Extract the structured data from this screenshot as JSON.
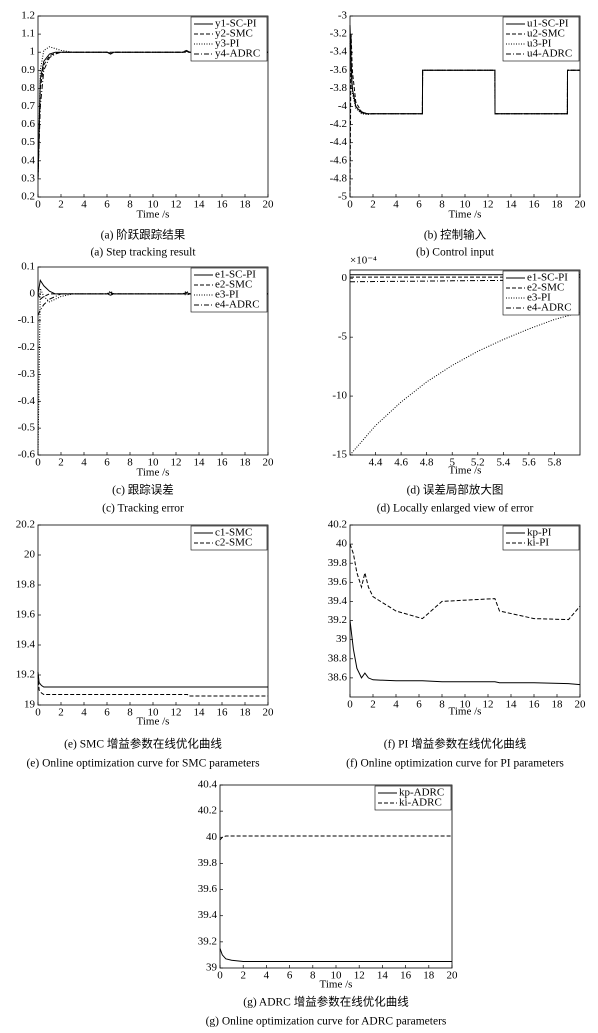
{
  "chart_data": [
    {
      "type": "line",
      "xlabel": "Time /s",
      "caption_cn": "(a) 阶跃跟踪结果",
      "caption_en": "(a) Step tracking result",
      "xlim": [
        0,
        20
      ],
      "xticks": [
        0,
        2,
        4,
        6,
        8,
        10,
        12,
        14,
        16,
        18,
        20
      ],
      "ylim": [
        0.2,
        1.2
      ],
      "yticks": [
        0.2,
        0.3,
        0.4,
        0.5,
        0.6,
        0.7,
        0.8,
        0.9,
        1,
        1.1,
        1.2
      ],
      "legend": "upper right",
      "x": [
        0,
        0.2,
        0.5,
        1,
        1.5,
        2,
        3,
        6,
        6.3,
        6.6,
        10,
        12.6,
        12.9,
        13.2,
        16,
        20
      ],
      "series": [
        {
          "name": "y1-SC-PI",
          "color": "#000",
          "style": "solid",
          "values": [
            0.3,
            0.85,
            0.95,
            0.99,
            1,
            1,
            1,
            1,
            0.99,
            1,
            1,
            1,
            1.01,
            1,
            1,
            1
          ]
        },
        {
          "name": "y2-SMC",
          "color": "#000",
          "style": "dashed",
          "values": [
            0.3,
            0.8,
            0.93,
            0.98,
            0.995,
            1,
            1,
            1,
            1,
            1,
            1,
            1,
            1,
            1,
            1,
            1
          ]
        },
        {
          "name": "y3-PI",
          "color": "#000",
          "style": "dotted",
          "values": [
            0.3,
            0.9,
            1.01,
            1.03,
            1.02,
            1.01,
            1,
            1,
            0.99,
            1,
            1,
            1,
            1.01,
            1,
            1,
            1
          ]
        },
        {
          "name": "y4-ADRC",
          "color": "#000",
          "style": "dashdot",
          "values": [
            0.3,
            0.7,
            0.9,
            0.97,
            0.99,
            1,
            1,
            1,
            0.995,
            1,
            1,
            1,
            1.005,
            1,
            1,
            1
          ]
        }
      ]
    },
    {
      "type": "line",
      "xlabel": "Time /s",
      "caption_cn": "(b) 控制输入",
      "caption_en": "(b) Control input",
      "xlim": [
        0,
        20
      ],
      "xticks": [
        0,
        2,
        4,
        6,
        8,
        10,
        12,
        14,
        16,
        18,
        20
      ],
      "ylim": [
        -5,
        -3
      ],
      "yticks": [
        -5,
        -4.8,
        -4.6,
        -4.4,
        -4.2,
        -4,
        -3.8,
        -3.6,
        -3.4,
        -3.2,
        -3
      ],
      "legend": "upper right",
      "x": [
        0,
        0.1,
        0.2,
        0.5,
        1,
        1.5,
        2,
        3,
        6.3,
        6.31,
        12.6,
        12.61,
        18.9,
        18.91,
        20
      ],
      "series": [
        {
          "name": "u1-SC-PI",
          "color": "#000",
          "style": "solid",
          "values": [
            -3.1,
            -3.5,
            -3.8,
            -4,
            -4.07,
            -4.08,
            -4.08,
            -4.08,
            -4.08,
            -3.6,
            -3.6,
            -4.08,
            -4.08,
            -3.6,
            -3.6
          ]
        },
        {
          "name": "u2-SMC",
          "color": "#000",
          "style": "dashed",
          "values": [
            -5,
            -3.2,
            -3.6,
            -3.95,
            -4.06,
            -4.08,
            -4.08,
            -4.08,
            -4.08,
            -3.6,
            -3.6,
            -4.08,
            -4.08,
            -3.6,
            -3.6
          ]
        },
        {
          "name": "u3-PI",
          "color": "#000",
          "style": "dotted",
          "values": [
            -3.3,
            -3.6,
            -3.85,
            -4.02,
            -4.08,
            -4.09,
            -4.08,
            -4.08,
            -4.08,
            -3.6,
            -3.6,
            -4.08,
            -4.08,
            -3.6,
            -3.6
          ]
        },
        {
          "name": "u4-ADRC",
          "color": "#000",
          "style": "dashdot",
          "values": [
            -3.2,
            -3.55,
            -3.8,
            -4,
            -4.06,
            -4.08,
            -4.08,
            -4.08,
            -4.08,
            -3.6,
            -3.6,
            -4.08,
            -4.08,
            -3.6,
            -3.6
          ]
        }
      ]
    },
    {
      "type": "line",
      "xlabel": "Time /s",
      "caption_cn": "(c) 跟踪误差",
      "caption_en": "(c) Tracking error",
      "xlim": [
        0,
        20
      ],
      "xticks": [
        0,
        2,
        4,
        6,
        8,
        10,
        12,
        14,
        16,
        18,
        20
      ],
      "ylim": [
        -0.6,
        0.1
      ],
      "yticks": [
        -0.6,
        -0.5,
        -0.4,
        -0.3,
        -0.2,
        -0.1,
        0,
        0.1
      ],
      "legend": "upper right",
      "x": [
        0,
        0.2,
        0.5,
        1,
        1.5,
        2,
        3,
        6,
        6.3,
        6.6,
        10,
        12.6,
        12.9,
        13.2,
        16,
        20
      ],
      "series": [
        {
          "name": "e1-SC-PI",
          "color": "#000",
          "style": "solid",
          "values": [
            0,
            0.05,
            0.03,
            0.01,
            0,
            0,
            0,
            0,
            0.005,
            0,
            0,
            0,
            0.005,
            0,
            0,
            0
          ]
        },
        {
          "name": "e2-SMC",
          "color": "#000",
          "style": "dashed",
          "values": [
            0,
            -0.02,
            -0.01,
            0,
            0,
            0,
            0,
            0,
            0,
            0,
            0,
            0,
            0,
            0,
            0,
            0
          ]
        },
        {
          "name": "e3-PI",
          "color": "#000",
          "style": "dotted",
          "values": [
            -0.6,
            0.02,
            -0.01,
            -0.03,
            -0.02,
            -0.01,
            0,
            0,
            0.01,
            0,
            0,
            0,
            0.01,
            0,
            0,
            0
          ]
        },
        {
          "name": "e4-ADRC",
          "color": "#000",
          "style": "dashdot",
          "values": [
            -0.08,
            -0.06,
            -0.04,
            -0.02,
            -0.01,
            0,
            0,
            0,
            -0.005,
            0,
            0,
            0,
            -0.005,
            0,
            0,
            0
          ]
        }
      ]
    },
    {
      "type": "line",
      "xlabel": "Time /s",
      "caption_cn": "(d) 误差局部放大图",
      "caption_en": "(d) Locally enlarged view of error",
      "y_scale_label": "×10⁻⁴",
      "xlim": [
        4.2,
        6
      ],
      "xticks": [
        4.4,
        4.6,
        4.8,
        5,
        5.2,
        5.4,
        5.6,
        5.8
      ],
      "ylim": [
        -15,
        0.7
      ],
      "yticks": [
        -15,
        -10,
        -5,
        0
      ],
      "legend": "upper right",
      "x": [
        4.2,
        4.4,
        4.6,
        4.8,
        5,
        5.2,
        5.4,
        5.6,
        5.8,
        6
      ],
      "series": [
        {
          "name": "e1-SC-PI",
          "color": "#000",
          "style": "solid",
          "values": [
            0.3,
            0.3,
            0.3,
            0.3,
            0.3,
            0.3,
            0.3,
            0.3,
            0.3,
            0.3
          ]
        },
        {
          "name": "e2-SMC",
          "color": "#000",
          "style": "dashed",
          "values": [
            0.1,
            0.1,
            0.1,
            0.1,
            0.1,
            0.1,
            0.1,
            0.1,
            0.1,
            0.1
          ]
        },
        {
          "name": "e3-PI",
          "color": "#000",
          "style": "dotted",
          "values": [
            -15,
            -12.5,
            -10.5,
            -8.8,
            -7.4,
            -6.2,
            -5.2,
            -4.3,
            -3.5,
            -2.9
          ]
        },
        {
          "name": "e4-ADRC",
          "color": "#000",
          "style": "dashdot",
          "values": [
            -0.3,
            -0.28,
            -0.26,
            -0.24,
            -0.22,
            -0.2,
            -0.18,
            -0.16,
            -0.14,
            -0.12
          ]
        }
      ]
    },
    {
      "type": "line",
      "xlabel": "Time /s",
      "caption_cn": "(e) SMC 增益参数在线优化曲线",
      "caption_en": "(e) Online optimization curve for SMC parameters",
      "xlim": [
        0,
        20
      ],
      "xticks": [
        0,
        2,
        4,
        6,
        8,
        10,
        12,
        14,
        16,
        18,
        20
      ],
      "ylim": [
        19,
        20.2
      ],
      "yticks": [
        19,
        19.2,
        19.4,
        19.6,
        19.8,
        20,
        20.2
      ],
      "legend": "upper right",
      "x": [
        0,
        0.1,
        0.3,
        0.5,
        1,
        5,
        10,
        13,
        13.1,
        20
      ],
      "series": [
        {
          "name": "c1-SMC",
          "color": "#000",
          "style": "solid",
          "values": [
            19.22,
            19.15,
            19.13,
            19.12,
            19.12,
            19.12,
            19.12,
            19.12,
            19.12,
            19.12
          ]
        },
        {
          "name": "c2-SMC",
          "color": "#000",
          "style": "dashed",
          "values": [
            19.2,
            19.1,
            19.08,
            19.07,
            19.07,
            19.07,
            19.07,
            19.07,
            19.06,
            19.06
          ]
        }
      ]
    },
    {
      "type": "line",
      "xlabel": "Time /s",
      "caption_cn": "(f) PI 增益参数在线优化曲线",
      "caption_en": "(f) Online optimization curve for PI parameters",
      "xlim": [
        0,
        20
      ],
      "xticks": [
        0,
        2,
        4,
        6,
        8,
        10,
        12,
        14,
        16,
        18,
        20
      ],
      "ylim": [
        38.4,
        40.2
      ],
      "yticks": [
        38.6,
        38.8,
        39,
        39.2,
        39.4,
        39.6,
        39.8,
        40,
        40.2
      ],
      "legend": "upper right",
      "x": [
        0,
        0.3,
        0.6,
        1,
        1.3,
        1.6,
        2,
        4,
        6.3,
        8,
        12.6,
        13,
        16,
        19,
        20
      ],
      "series": [
        {
          "name": "kp-PI",
          "color": "#000",
          "style": "solid",
          "values": [
            39.2,
            38.9,
            38.7,
            38.6,
            38.65,
            38.6,
            38.58,
            38.57,
            38.57,
            38.56,
            38.56,
            38.55,
            38.55,
            38.54,
            38.53
          ]
        },
        {
          "name": "ki-PI",
          "color": "#000",
          "style": "dashed",
          "values": [
            40,
            39.9,
            39.7,
            39.55,
            39.7,
            39.55,
            39.45,
            39.3,
            39.22,
            39.4,
            39.43,
            39.3,
            39.22,
            39.21,
            39.35
          ]
        }
      ]
    },
    {
      "type": "line",
      "xlabel": "Time /s",
      "caption_cn": "(g) ADRC 增益参数在线优化曲线",
      "caption_en": "(g) Online optimization curve for ADRC parameters",
      "xlim": [
        0,
        20
      ],
      "xticks": [
        0,
        2,
        4,
        6,
        8,
        10,
        12,
        14,
        16,
        18,
        20
      ],
      "ylim": [
        39,
        40.4
      ],
      "yticks": [
        39,
        39.2,
        39.4,
        39.6,
        39.8,
        40,
        40.2,
        40.4
      ],
      "legend": "upper right",
      "x": [
        0,
        0.2,
        0.5,
        1,
        2,
        5,
        10,
        15,
        20
      ],
      "series": [
        {
          "name": "kp-ADRC",
          "color": "#000",
          "style": "solid",
          "values": [
            39.15,
            39.1,
            39.07,
            39.06,
            39.05,
            39.05,
            39.05,
            39.05,
            39.05
          ]
        },
        {
          "name": "ki-ADRC",
          "color": "#000",
          "style": "dashed",
          "values": [
            39.98,
            40,
            40.01,
            40.01,
            40.01,
            40.01,
            40.01,
            40.01,
            40.01
          ]
        }
      ]
    }
  ]
}
